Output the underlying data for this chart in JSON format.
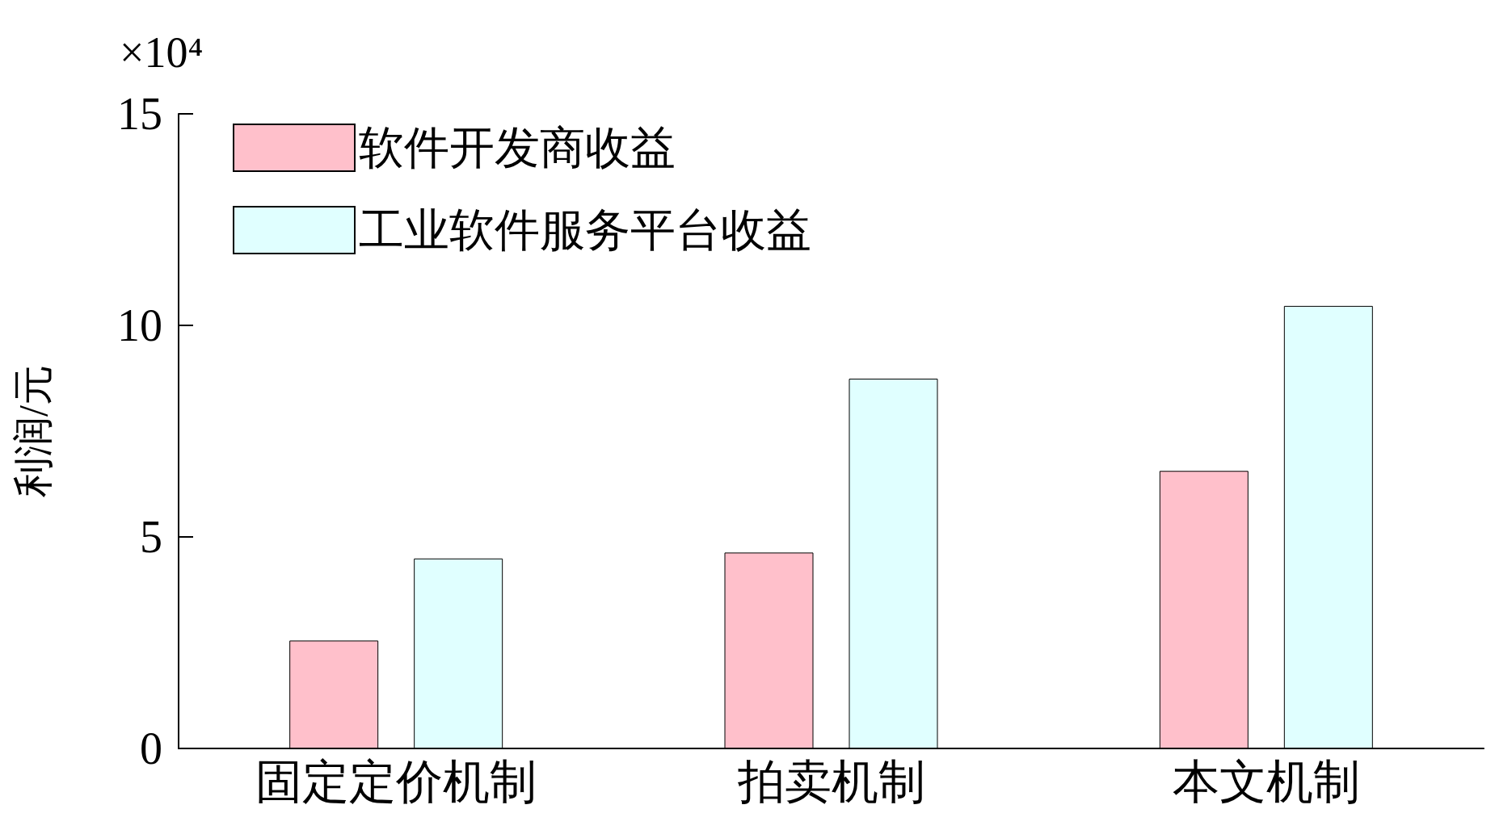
{
  "chart_data": {
    "type": "bar",
    "categories": [
      "固定定价机制",
      "拍卖机制",
      "本文机制"
    ],
    "series": [
      {
        "name": "软件开发商收益",
        "color": "#ffc0cb",
        "values": [
          2.55,
          4.63,
          6.56
        ]
      },
      {
        "name": "工业软件服务平台收益",
        "color": "#e0ffff",
        "values": [
          4.49,
          8.74,
          10.46
        ]
      }
    ],
    "ylabel": "利润/元",
    "ylim": [
      0,
      15
    ],
    "yticks": [
      0,
      5,
      10,
      15
    ],
    "annotations": [
      "×10⁴"
    ],
    "legend": "top left",
    "grid": false
  }
}
